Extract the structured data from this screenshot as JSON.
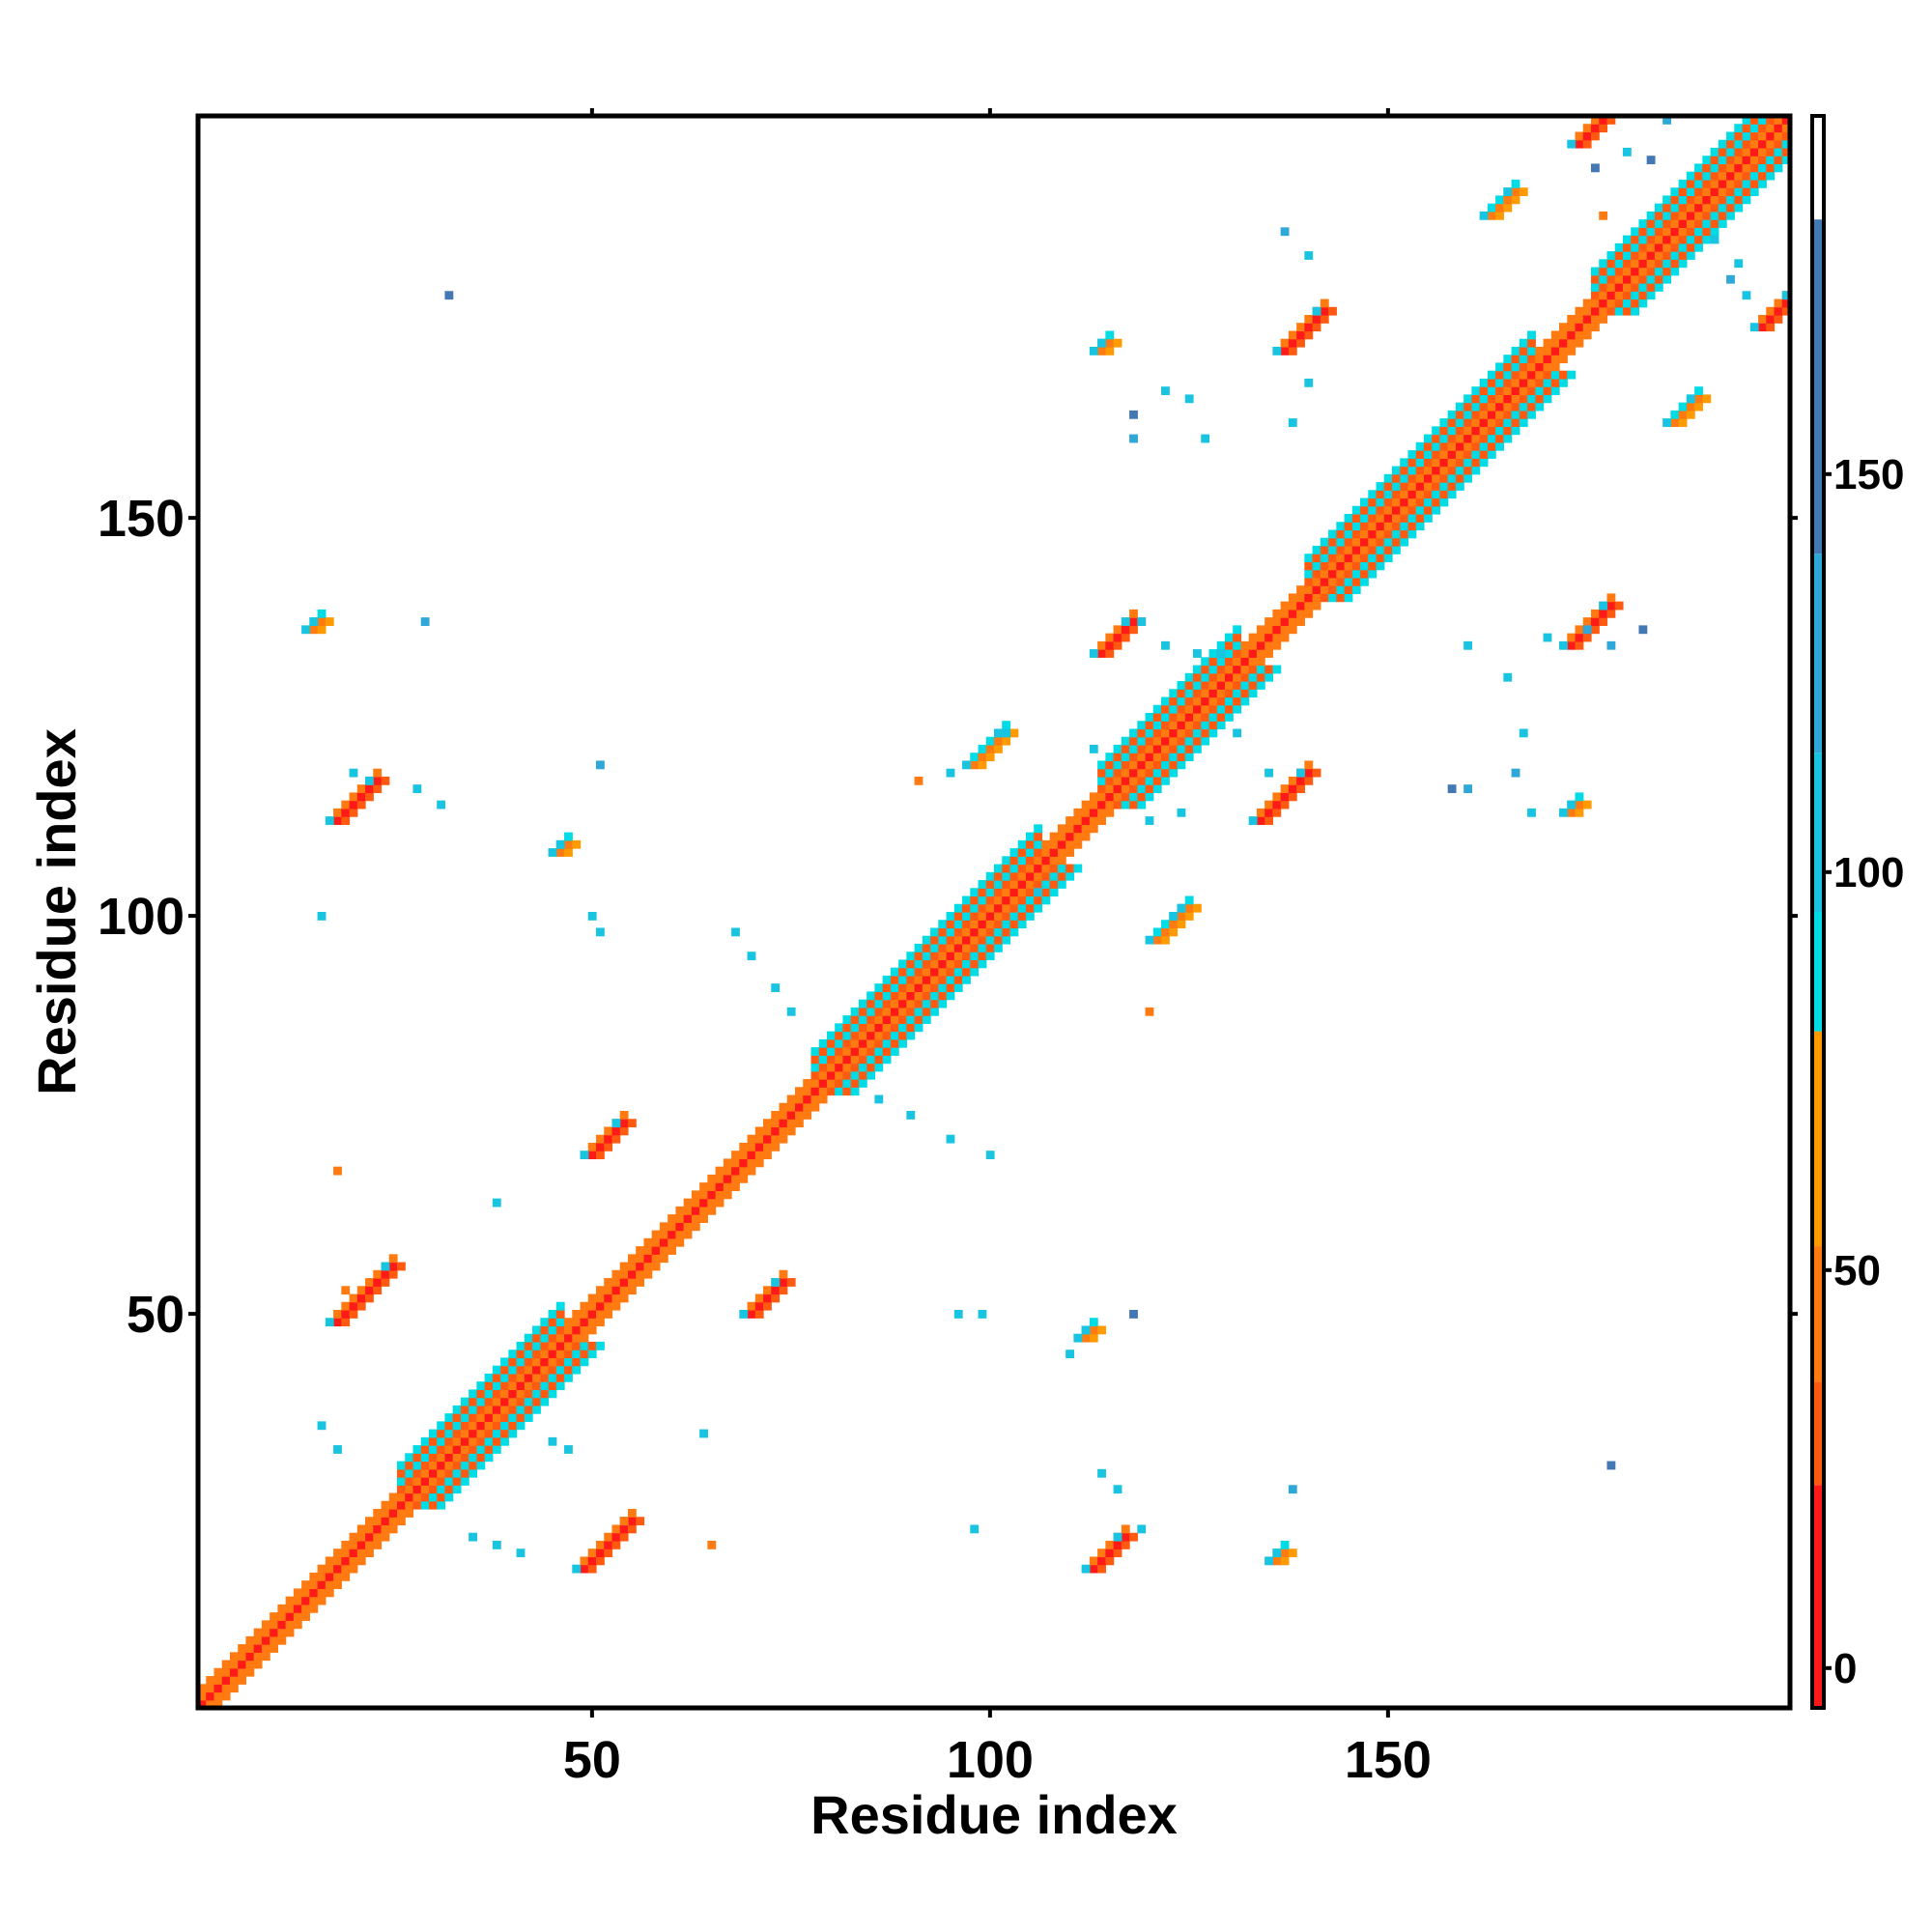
{
  "chart_data": {
    "type": "heatmap",
    "title": "",
    "xlabel": "Residue index",
    "ylabel": "Residue index",
    "xlim": [
      1,
      200
    ],
    "ylim": [
      1,
      200
    ],
    "x_ticks": [
      "50",
      "100",
      "150"
    ],
    "y_ticks": [
      "50",
      "100",
      "150"
    ],
    "grid": false,
    "colorbar": {
      "position": "right",
      "ticks": [
        "0",
        "50",
        "100",
        "150"
      ],
      "range": [
        -5,
        195
      ],
      "bands": [
        {
          "from": -5,
          "to": 23,
          "color": "#ff1a1a"
        },
        {
          "from": 23,
          "to": 36,
          "color": "#ff5a10"
        },
        {
          "from": 36,
          "to": 53,
          "color": "#ff7a10"
        },
        {
          "from": 53,
          "to": 80,
          "color": "#ff9a00"
        },
        {
          "from": 80,
          "to": 95,
          "color": "#00dce6"
        },
        {
          "from": 95,
          "to": 115,
          "color": "#19c4e0"
        },
        {
          "from": 115,
          "to": 140,
          "color": "#2fa8d8"
        },
        {
          "from": 140,
          "to": 182,
          "color": "#4478b4"
        },
        {
          "from": 182,
          "to": 195,
          "color": "#ffffff"
        }
      ]
    },
    "diagonal": {
      "from": 1,
      "to": 200
    },
    "helix_segments": [
      {
        "from": 26,
        "to": 46
      },
      {
        "from": 78,
        "to": 106
      },
      {
        "from": 114,
        "to": 131
      },
      {
        "from": 140,
        "to": 168
      },
      {
        "from": 176,
        "to": 199
      }
    ],
    "contact_patches": [
      {
        "x": 18,
        "y": 49,
        "len": 8,
        "value": 20
      },
      {
        "x": 49,
        "y": 18,
        "len": 7,
        "value": 20
      },
      {
        "x": 18,
        "y": 112,
        "len": 6,
        "value": 10
      },
      {
        "x": 50,
        "y": 70,
        "len": 5,
        "value": 20
      },
      {
        "x": 70,
        "y": 50,
        "len": 5,
        "value": 20
      },
      {
        "x": 113,
        "y": 18,
        "len": 5,
        "value": 10
      },
      {
        "x": 114,
        "y": 133,
        "len": 5,
        "value": 10
      },
      {
        "x": 134,
        "y": 112,
        "len": 7,
        "value": 10
      },
      {
        "x": 137,
        "y": 171,
        "len": 6,
        "value": 15
      },
      {
        "x": 173,
        "y": 134,
        "len": 6,
        "value": 15
      },
      {
        "x": 174,
        "y": 197,
        "len": 5,
        "value": 15
      },
      {
        "x": 197,
        "y": 174,
        "len": 5,
        "value": 15
      },
      {
        "x": 186,
        "y": 162,
        "len": 4,
        "value": 50
      },
      {
        "x": 163,
        "y": 188,
        "len": 4,
        "value": 50
      },
      {
        "x": 121,
        "y": 97,
        "len": 5,
        "value": 50
      },
      {
        "x": 98,
        "y": 119,
        "len": 5,
        "value": 50
      },
      {
        "x": 15,
        "y": 136,
        "len": 2,
        "value": 50
      },
      {
        "x": 46,
        "y": 108,
        "len": 2,
        "value": 50
      },
      {
        "x": 112,
        "y": 47,
        "len": 2,
        "value": 50
      },
      {
        "x": 136,
        "y": 19,
        "len": 2,
        "value": 50
      },
      {
        "x": 114,
        "y": 171,
        "len": 2,
        "value": 50
      },
      {
        "x": 173,
        "y": 113,
        "len": 2,
        "value": 50
      }
    ],
    "scatter_points": [
      {
        "x": 16,
        "y": 100,
        "value": 95
      },
      {
        "x": 20,
        "y": 118,
        "value": 95
      },
      {
        "x": 28,
        "y": 116,
        "value": 95
      },
      {
        "x": 31,
        "y": 114,
        "value": 95
      },
      {
        "x": 50,
        "y": 100,
        "value": 100
      },
      {
        "x": 51,
        "y": 98,
        "value": 95
      },
      {
        "x": 68,
        "y": 98,
        "value": 95
      },
      {
        "x": 70,
        "y": 95,
        "value": 95
      },
      {
        "x": 73,
        "y": 91,
        "value": 95
      },
      {
        "x": 75,
        "y": 88,
        "value": 95
      },
      {
        "x": 86,
        "y": 77,
        "value": 95
      },
      {
        "x": 90,
        "y": 75,
        "value": 95
      },
      {
        "x": 95,
        "y": 72,
        "value": 100
      },
      {
        "x": 100,
        "y": 70,
        "value": 95
      },
      {
        "x": 96,
        "y": 50,
        "value": 110
      },
      {
        "x": 99,
        "y": 50,
        "value": 95
      },
      {
        "x": 118,
        "y": 50,
        "value": 150
      },
      {
        "x": 110,
        "y": 45,
        "value": 95
      },
      {
        "x": 114,
        "y": 30,
        "value": 95
      },
      {
        "x": 116,
        "y": 28,
        "value": 100
      },
      {
        "x": 119,
        "y": 23,
        "value": 110
      },
      {
        "x": 138,
        "y": 28,
        "value": 130
      },
      {
        "x": 178,
        "y": 31,
        "value": 150
      },
      {
        "x": 98,
        "y": 23,
        "value": 110
      },
      {
        "x": 64,
        "y": 35,
        "value": 95
      },
      {
        "x": 65,
        "y": 21,
        "value": 50
      },
      {
        "x": 54,
        "y": 24,
        "value": 50
      },
      {
        "x": 41,
        "y": 20,
        "value": 95
      },
      {
        "x": 38,
        "y": 21,
        "value": 95
      },
      {
        "x": 35,
        "y": 22,
        "value": 95
      },
      {
        "x": 45,
        "y": 34,
        "value": 95
      },
      {
        "x": 47,
        "y": 33,
        "value": 95
      },
      {
        "x": 18,
        "y": 33,
        "value": 95
      },
      {
        "x": 16,
        "y": 36,
        "value": 95
      },
      {
        "x": 19,
        "y": 53,
        "value": 50
      },
      {
        "x": 38,
        "y": 64,
        "value": 95
      },
      {
        "x": 18,
        "y": 68,
        "value": 50
      },
      {
        "x": 32,
        "y": 178,
        "value": 150
      },
      {
        "x": 29,
        "y": 137,
        "value": 130
      },
      {
        "x": 51,
        "y": 119,
        "value": 130
      },
      {
        "x": 113,
        "y": 121,
        "value": 95
      },
      {
        "x": 119,
        "y": 137,
        "value": 95
      },
      {
        "x": 122,
        "y": 134,
        "value": 95
      },
      {
        "x": 118,
        "y": 160,
        "value": 130
      },
      {
        "x": 118,
        "y": 163,
        "value": 150
      },
      {
        "x": 122,
        "y": 166,
        "value": 95
      },
      {
        "x": 125,
        "y": 165,
        "value": 95
      },
      {
        "x": 137,
        "y": 186,
        "value": 130
      },
      {
        "x": 140,
        "y": 183,
        "value": 95
      },
      {
        "x": 140,
        "y": 167,
        "value": 95
      },
      {
        "x": 138,
        "y": 162,
        "value": 95
      },
      {
        "x": 160,
        "y": 134,
        "value": 95
      },
      {
        "x": 165,
        "y": 130,
        "value": 95
      },
      {
        "x": 167,
        "y": 123,
        "value": 95
      },
      {
        "x": 166,
        "y": 118,
        "value": 130
      },
      {
        "x": 160,
        "y": 116,
        "value": 130
      },
      {
        "x": 158,
        "y": 116,
        "value": 150
      },
      {
        "x": 170,
        "y": 135,
        "value": 95
      },
      {
        "x": 175,
        "y": 136,
        "value": 130
      },
      {
        "x": 178,
        "y": 134,
        "value": 130
      },
      {
        "x": 182,
        "y": 136,
        "value": 150
      },
      {
        "x": 168,
        "y": 113,
        "value": 95
      },
      {
        "x": 120,
        "y": 112,
        "value": 95
      },
      {
        "x": 124,
        "y": 113,
        "value": 95
      },
      {
        "x": 135,
        "y": 118,
        "value": 95
      },
      {
        "x": 131,
        "y": 123,
        "value": 95
      },
      {
        "x": 126,
        "y": 133,
        "value": 95
      },
      {
        "x": 129,
        "y": 133,
        "value": 95
      },
      {
        "x": 183,
        "y": 195,
        "value": 150
      },
      {
        "x": 191,
        "y": 185,
        "value": 95
      },
      {
        "x": 194,
        "y": 182,
        "value": 95
      },
      {
        "x": 176,
        "y": 194,
        "value": 150
      },
      {
        "x": 180,
        "y": 196,
        "value": 95
      },
      {
        "x": 185,
        "y": 200,
        "value": 130
      },
      {
        "x": 193,
        "y": 180,
        "value": 130
      },
      {
        "x": 195,
        "y": 178,
        "value": 95
      },
      {
        "x": 177,
        "y": 188,
        "value": 50
      },
      {
        "x": 102,
        "y": 123,
        "value": 95
      },
      {
        "x": 95,
        "y": 118,
        "value": 95
      },
      {
        "x": 91,
        "y": 117,
        "value": 50
      },
      {
        "x": 106,
        "y": 103,
        "value": 95
      },
      {
        "x": 120,
        "y": 88,
        "value": 50
      },
      {
        "x": 123,
        "y": 100,
        "value": 95
      },
      {
        "x": 127,
        "y": 160,
        "value": 95
      }
    ],
    "diagonal_band_values": [
      {
        "offset": 0,
        "value": -5
      },
      {
        "offset": 1,
        "value": 50
      },
      {
        "offset": 2,
        "value": 25
      },
      {
        "offset": 3,
        "value": 90
      },
      {
        "offset": 4,
        "value": 35
      },
      {
        "offset": 5,
        "value": 60
      }
    ]
  }
}
